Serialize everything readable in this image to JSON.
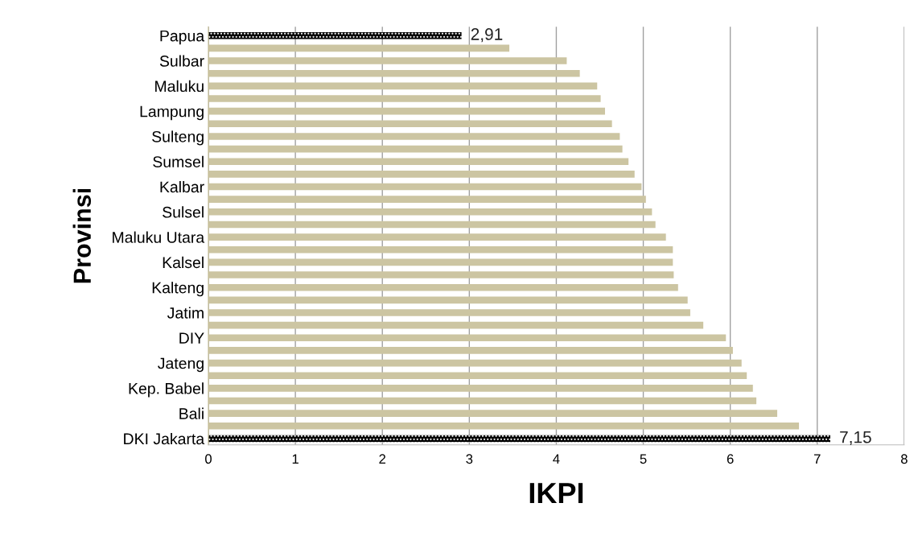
{
  "chart_data": {
    "type": "bar",
    "orientation": "horizontal",
    "xlabel": "IKPI",
    "ylabel": "Provinsi",
    "categories": [
      "Papua",
      null,
      "Sulbar",
      null,
      "Maluku",
      null,
      "Lampung",
      null,
      "Sulteng",
      null,
      "Sumsel",
      null,
      "Kalbar",
      null,
      "Sulsel",
      null,
      "Maluku Utara",
      null,
      "Kalsel",
      null,
      "Kalteng",
      null,
      "Jatim",
      null,
      "DIY",
      null,
      "Jateng",
      null,
      "Kep. Babel",
      null,
      "Bali",
      null,
      "DKI Jakarta"
    ],
    "values": [
      2.91,
      3.46,
      4.12,
      4.27,
      4.47,
      4.51,
      4.56,
      4.64,
      4.73,
      4.76,
      4.83,
      4.9,
      4.98,
      5.03,
      5.1,
      5.14,
      5.26,
      5.34,
      5.34,
      5.35,
      5.4,
      5.51,
      5.54,
      5.69,
      5.95,
      6.03,
      6.13,
      6.19,
      6.26,
      6.3,
      6.54,
      6.79,
      7.15
    ],
    "colors": [
      "#000000",
      "#ccc5a2",
      "#ccc5a2",
      "#ccc5a2",
      "#ccc5a2",
      "#ccc5a2",
      "#ccc5a2",
      "#ccc5a2",
      "#ccc5a2",
      "#ccc5a2",
      "#ccc5a2",
      "#ccc5a2",
      "#ccc5a2",
      "#ccc5a2",
      "#ccc5a2",
      "#ccc5a2",
      "#ccc5a2",
      "#ccc5a2",
      "#ccc5a2",
      "#ccc5a2",
      "#ccc5a2",
      "#ccc5a2",
      "#ccc5a2",
      "#ccc5a2",
      "#ccc5a2",
      "#ccc5a2",
      "#ccc5a2",
      "#ccc5a2",
      "#ccc5a2",
      "#ccc5a2",
      "#ccc5a2",
      "#ccc5a2",
      "#000000"
    ],
    "value_labels": [
      "2,91",
      null,
      null,
      null,
      null,
      null,
      null,
      null,
      null,
      null,
      null,
      null,
      null,
      null,
      null,
      null,
      null,
      null,
      null,
      null,
      null,
      null,
      null,
      null,
      null,
      null,
      null,
      null,
      null,
      null,
      null,
      null,
      "7,15"
    ],
    "xlim": [
      0,
      8
    ],
    "xticks": [
      0,
      1,
      2,
      3,
      4,
      5,
      6,
      7,
      8
    ],
    "grid": "x"
  }
}
